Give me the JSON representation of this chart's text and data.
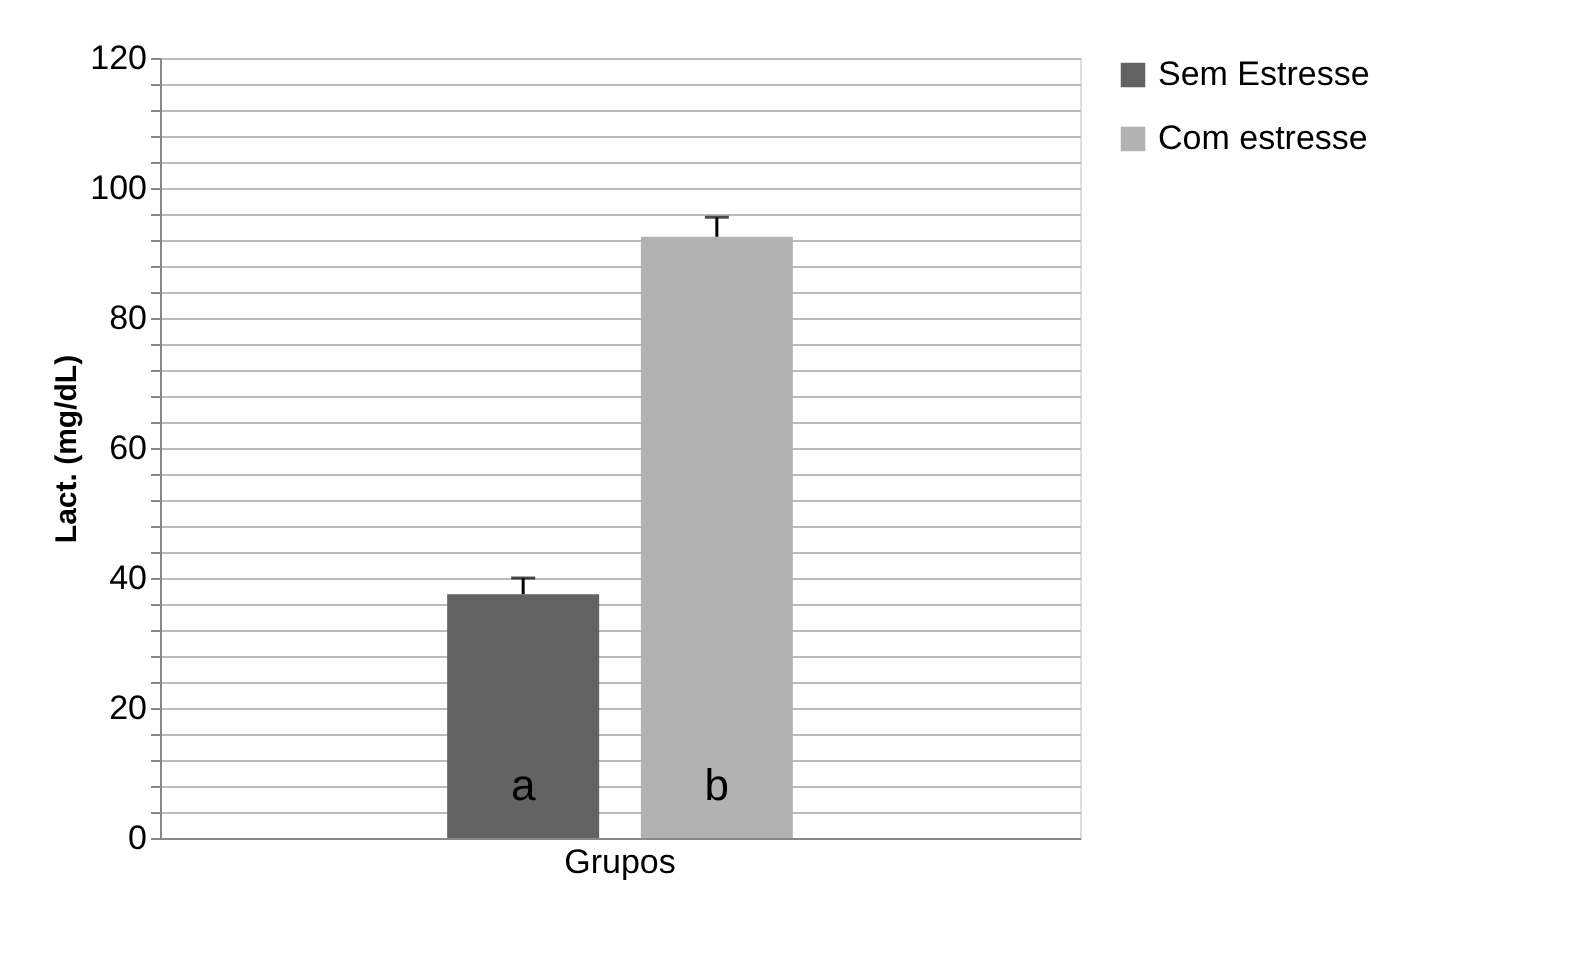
{
  "chart_data": {
    "type": "bar",
    "ylabel": "Lact. (mg/dL)",
    "categories": [
      "Grupos"
    ],
    "series": [
      {
        "name": "Sem Estresse",
        "color": "#636363",
        "values": [
          37.5
        ],
        "errors": [
          [
            37.5,
            40
          ]
        ]
      },
      {
        "name": "Com estresse",
        "color": "#b2b2b2",
        "values": [
          92.5
        ],
        "errors": [
          [
            92.5,
            95.5
          ]
        ]
      }
    ],
    "ylim": [
      0,
      120
    ],
    "yticks": [
      0,
      {
        "value": 4,
        "label": null
      },
      {
        "value": 8,
        "label": null
      },
      {
        "value": 12,
        "label": null
      },
      {
        "value": 16,
        "label": null
      },
      20,
      {
        "value": 24,
        "label": null
      },
      {
        "value": 28,
        "label": null
      },
      {
        "value": 32,
        "label": null
      },
      {
        "value": 36,
        "label": null
      },
      40,
      {
        "value": 44,
        "label": null
      },
      {
        "value": 48,
        "label": null
      },
      {
        "value": 52,
        "label": null
      },
      {
        "value": 56,
        "label": null
      },
      60,
      {
        "value": 64,
        "label": null
      },
      {
        "value": 68,
        "label": null
      },
      {
        "value": 72,
        "label": null
      },
      {
        "value": 76,
        "label": null
      },
      80,
      {
        "value": 84,
        "label": null
      },
      {
        "value": 88,
        "label": null
      },
      {
        "value": 92,
        "label": null
      },
      {
        "value": 96,
        "label": null
      },
      100,
      {
        "value": 104,
        "label": null
      },
      {
        "value": 108,
        "label": null
      },
      {
        "value": 112,
        "label": null
      },
      {
        "value": 116,
        "label": null
      },
      120
    ],
    "annotations": [
      "a",
      "b"
    ],
    "grid": "y",
    "legend": "right"
  }
}
